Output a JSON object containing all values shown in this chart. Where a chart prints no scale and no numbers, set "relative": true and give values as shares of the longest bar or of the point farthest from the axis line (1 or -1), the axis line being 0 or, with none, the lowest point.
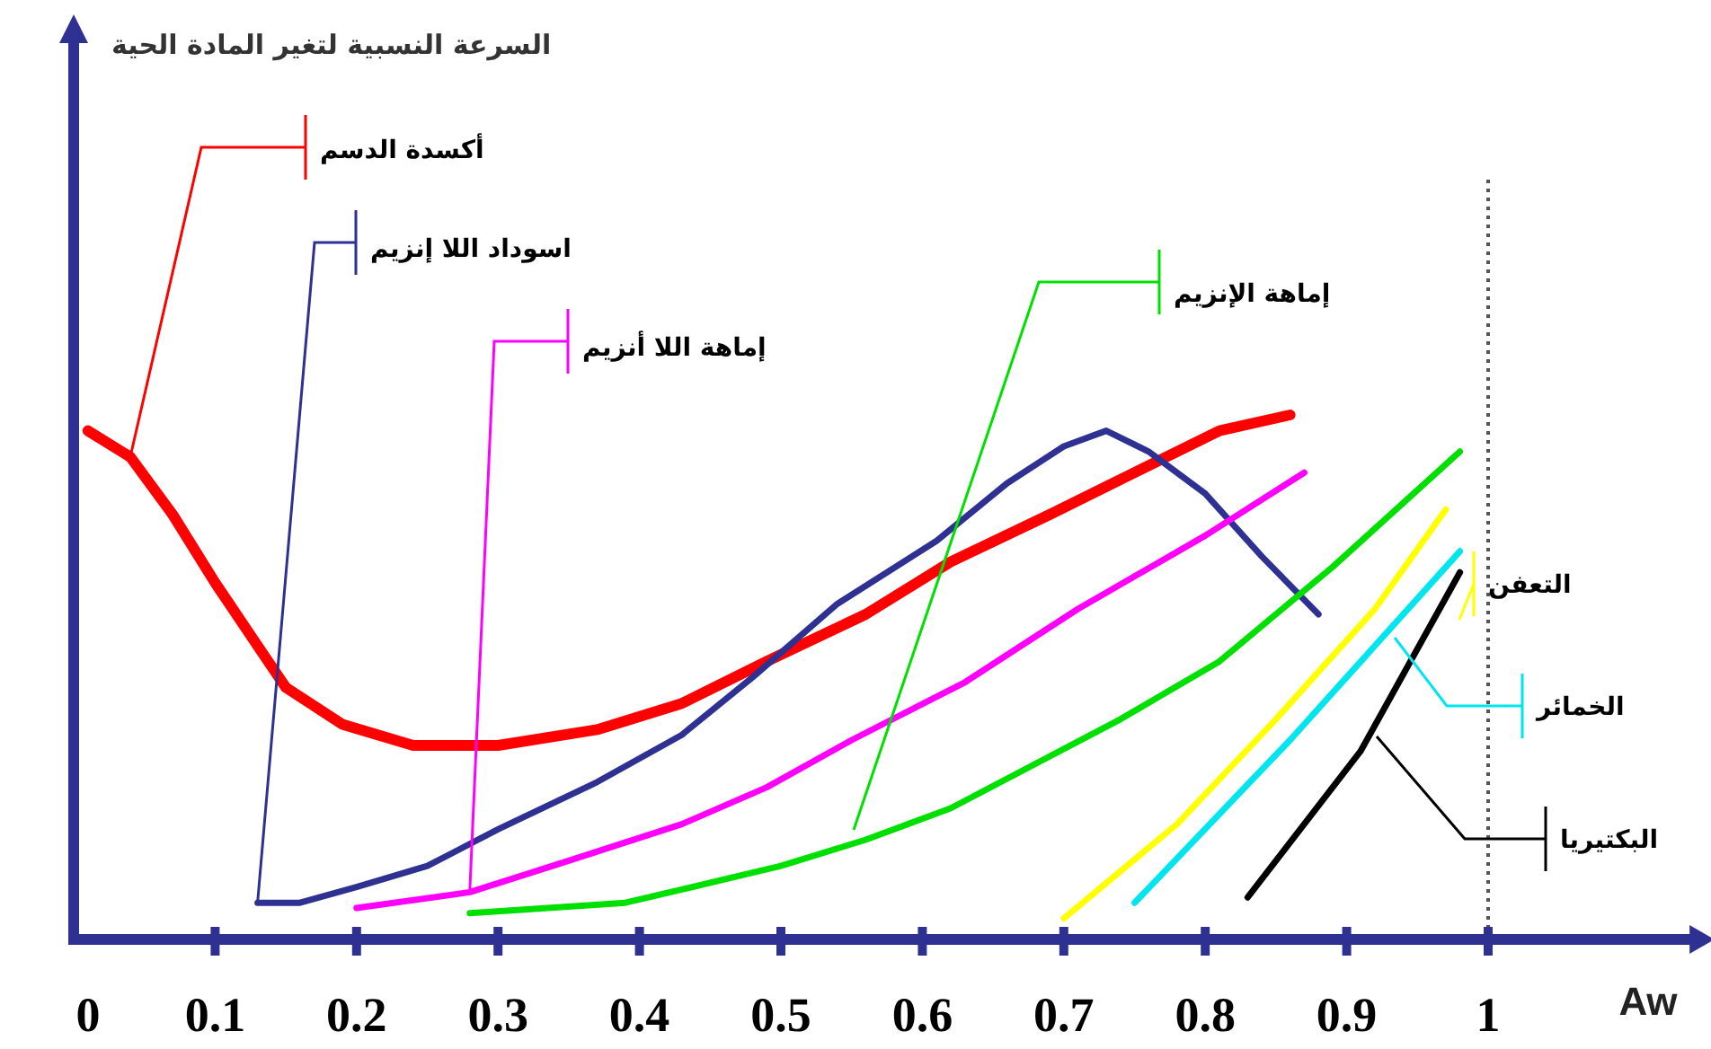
{
  "chart_data": {
    "type": "line",
    "relative": true,
    "annotations": [
      "السرعة النسبية لتغير المادة الحية"
    ],
    "xlabel": "Aw",
    "xlim": [
      0,
      1.15
    ],
    "xticks": [
      0,
      0.1,
      0.2,
      0.3,
      0.4,
      0.5,
      0.6,
      0.7,
      0.8,
      0.9,
      1
    ],
    "marker": "none",
    "line_style": "solid",
    "ref_lines": [
      {
        "axis": "x",
        "value": 1,
        "color": "#555555",
        "line_style": "dotted"
      }
    ],
    "series": [
      {
        "name": "أكسدة الدسم",
        "color": "#ff0000",
        "x": [
          0.01,
          0.04,
          0.07,
          0.1,
          0.13,
          0.15,
          0.19,
          0.24,
          0.3,
          0.37,
          0.43,
          0.49,
          0.56,
          0.62,
          0.69,
          0.75,
          0.81,
          0.86
        ],
        "values": [
          0.97,
          0.92,
          0.81,
          0.68,
          0.56,
          0.48,
          0.41,
          0.37,
          0.37,
          0.4,
          0.45,
          0.53,
          0.62,
          0.72,
          0.81,
          0.89,
          0.97,
          1.0
        ]
      },
      {
        "name": "اسوداد اللا إنزيم",
        "color": "#2e3192",
        "x": [
          0.13,
          0.16,
          0.2,
          0.25,
          0.3,
          0.37,
          0.43,
          0.48,
          0.54,
          0.61,
          0.66,
          0.7,
          0.73,
          0.76,
          0.8,
          0.84,
          0.88
        ],
        "values": [
          0.07,
          0.07,
          0.1,
          0.14,
          0.21,
          0.3,
          0.39,
          0.5,
          0.64,
          0.76,
          0.87,
          0.94,
          0.97,
          0.93,
          0.85,
          0.73,
          0.62
        ]
      },
      {
        "name": "إماهة اللا أنزيم",
        "color": "#ff00ff",
        "x": [
          0.2,
          0.28,
          0.35,
          0.43,
          0.49,
          0.55,
          0.63,
          0.71,
          0.8,
          0.87
        ],
        "values": [
          0.06,
          0.09,
          0.15,
          0.22,
          0.29,
          0.38,
          0.49,
          0.63,
          0.77,
          0.89
        ]
      },
      {
        "name": "إماهة الإنزيم",
        "color": "#00e000",
        "x": [
          0.28,
          0.39,
          0.5,
          0.56,
          0.62,
          0.74,
          0.81,
          0.89,
          0.98
        ],
        "values": [
          0.05,
          0.07,
          0.14,
          0.19,
          0.25,
          0.42,
          0.53,
          0.71,
          0.93
        ]
      },
      {
        "name": "التعفن",
        "color": "#ffff00",
        "x": [
          0.7,
          0.78,
          0.85,
          0.92,
          0.97
        ],
        "values": [
          0.04,
          0.22,
          0.42,
          0.63,
          0.82
        ]
      },
      {
        "name": "الخمائر",
        "color": "#00e5ee",
        "x": [
          0.75,
          0.86,
          0.92,
          0.98
        ],
        "values": [
          0.07,
          0.38,
          0.56,
          0.74
        ]
      },
      {
        "name": "البكتيريا",
        "color": "#000000",
        "x": [
          0.83,
          0.91,
          0.98
        ],
        "values": [
          0.08,
          0.36,
          0.7
        ]
      }
    ]
  }
}
